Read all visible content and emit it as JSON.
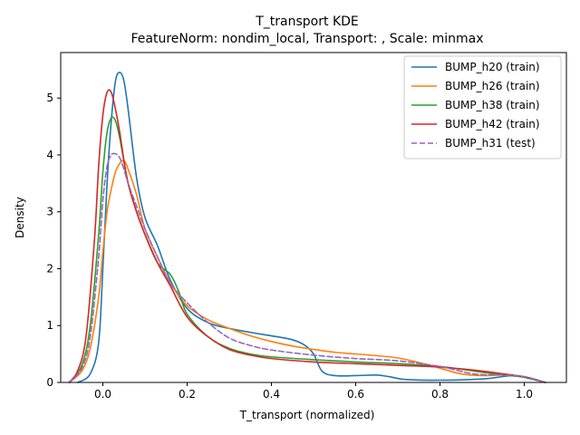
{
  "chart_data": {
    "type": "line",
    "title": "T_transport KDE",
    "subtitle": "FeatureNorm: nondim_local, Transport: , Scale: minmax",
    "xlabel": "T_transport (normalized)",
    "ylabel": "Density",
    "xlim": [
      -0.1,
      1.1
    ],
    "ylim": [
      0,
      5.8
    ],
    "xticks": [
      "0.0",
      "0.2",
      "0.4",
      "0.6",
      "0.8",
      "1.0"
    ],
    "xtick_values": [
      0.0,
      0.2,
      0.4,
      0.6,
      0.8,
      1.0
    ],
    "yticks": [
      "0",
      "1",
      "2",
      "3",
      "4",
      "5"
    ],
    "ytick_values": [
      0,
      1,
      2,
      3,
      4,
      5
    ],
    "grid": false,
    "legend_position": "top-right",
    "series": [
      {
        "name": "BUMP_h20 (train)",
        "color": "#1f77b4",
        "dash": "solid",
        "x": [
          -0.06,
          -0.03,
          -0.01,
          0.0,
          0.01,
          0.02,
          0.03,
          0.04,
          0.05,
          0.06,
          0.08,
          0.1,
          0.13,
          0.16,
          0.2,
          0.25,
          0.3,
          0.35,
          0.4,
          0.45,
          0.48,
          0.5,
          0.52,
          0.55,
          0.6,
          0.65,
          0.68,
          0.72,
          0.8,
          0.9,
          0.97,
          1.0,
          1.05
        ],
        "y": [
          0.0,
          0.15,
          0.7,
          2.0,
          3.5,
          4.6,
          5.3,
          5.45,
          5.3,
          4.8,
          3.6,
          2.9,
          2.4,
          1.8,
          1.3,
          1.05,
          0.95,
          0.88,
          0.82,
          0.75,
          0.65,
          0.5,
          0.2,
          0.12,
          0.12,
          0.13,
          0.1,
          0.05,
          0.04,
          0.06,
          0.12,
          0.09,
          0.0
        ]
      },
      {
        "name": "BUMP_h26 (train)",
        "color": "#ff7f0e",
        "dash": "solid",
        "x": [
          -0.08,
          -0.05,
          -0.03,
          -0.01,
          0.0,
          0.01,
          0.02,
          0.03,
          0.04,
          0.05,
          0.06,
          0.08,
          0.1,
          0.13,
          0.16,
          0.2,
          0.25,
          0.3,
          0.35,
          0.4,
          0.45,
          0.5,
          0.55,
          0.6,
          0.65,
          0.7,
          0.75,
          0.8,
          0.85,
          0.9,
          0.95,
          1.0,
          1.05
        ],
        "y": [
          0.0,
          0.2,
          0.6,
          1.5,
          2.3,
          3.0,
          3.4,
          3.7,
          3.85,
          3.9,
          3.75,
          3.3,
          2.7,
          2.2,
          1.75,
          1.35,
          1.1,
          0.95,
          0.82,
          0.72,
          0.64,
          0.58,
          0.53,
          0.5,
          0.47,
          0.43,
          0.35,
          0.25,
          0.15,
          0.12,
          0.13,
          0.1,
          0.0
        ]
      },
      {
        "name": "BUMP_h38 (train)",
        "color": "#2ca02c",
        "dash": "solid",
        "x": [
          -0.08,
          -0.05,
          -0.03,
          -0.01,
          0.0,
          0.01,
          0.02,
          0.03,
          0.04,
          0.06,
          0.08,
          0.1,
          0.13,
          0.16,
          0.18,
          0.2,
          0.25,
          0.3,
          0.35,
          0.4,
          0.5,
          0.6,
          0.7,
          0.8,
          0.9,
          0.95,
          1.0,
          1.05
        ],
        "y": [
          0.0,
          0.3,
          1.0,
          2.6,
          3.7,
          4.4,
          4.65,
          4.6,
          4.3,
          3.5,
          3.0,
          2.6,
          2.1,
          1.9,
          1.6,
          1.2,
          0.8,
          0.6,
          0.5,
          0.45,
          0.4,
          0.36,
          0.33,
          0.28,
          0.18,
          0.13,
          0.09,
          0.0
        ]
      },
      {
        "name": "BUMP_h42 (train)",
        "color": "#d62728",
        "dash": "solid",
        "x": [
          -0.08,
          -0.06,
          -0.04,
          -0.02,
          -0.01,
          0.0,
          0.01,
          0.02,
          0.03,
          0.04,
          0.05,
          0.06,
          0.08,
          0.1,
          0.13,
          0.16,
          0.2,
          0.25,
          0.3,
          0.35,
          0.4,
          0.5,
          0.6,
          0.7,
          0.8,
          0.9,
          0.95,
          1.0,
          1.05
        ],
        "y": [
          0.0,
          0.2,
          0.8,
          2.5,
          3.8,
          4.7,
          5.1,
          5.1,
          4.8,
          4.4,
          3.9,
          3.5,
          3.0,
          2.6,
          2.1,
          1.7,
          1.15,
          0.8,
          0.58,
          0.48,
          0.42,
          0.36,
          0.33,
          0.3,
          0.27,
          0.2,
          0.15,
          0.1,
          0.0
        ]
      },
      {
        "name": "BUMP_h31 (test)",
        "color": "#9467bd",
        "dash": "dashed",
        "x": [
          -0.08,
          -0.05,
          -0.03,
          -0.01,
          0.0,
          0.01,
          0.02,
          0.03,
          0.04,
          0.05,
          0.06,
          0.08,
          0.1,
          0.13,
          0.16,
          0.2,
          0.25,
          0.3,
          0.35,
          0.4,
          0.5,
          0.6,
          0.7,
          0.8,
          0.88,
          0.95,
          1.0,
          1.05
        ],
        "y": [
          0.0,
          0.25,
          0.8,
          2.2,
          3.2,
          3.8,
          4.0,
          4.02,
          3.95,
          3.75,
          3.5,
          3.1,
          2.7,
          2.2,
          1.75,
          1.4,
          1.05,
          0.78,
          0.65,
          0.57,
          0.48,
          0.42,
          0.38,
          0.28,
          0.15,
          0.13,
          0.1,
          0.0
        ]
      }
    ]
  }
}
